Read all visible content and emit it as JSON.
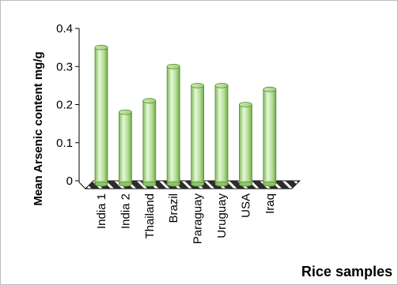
{
  "chart_data": {
    "type": "bar",
    "categories": [
      "India 1",
      "India 2",
      "Thailand",
      "Brazil",
      "Paraguay",
      "Uruguay",
      "USA",
      "Iraq"
    ],
    "values": [
      0.35,
      0.18,
      0.21,
      0.3,
      0.25,
      0.25,
      0.2,
      0.24
    ],
    "ylim": [
      0,
      0.4
    ],
    "yticks": [
      0,
      0.1,
      0.2,
      0.3,
      0.4
    ],
    "ytick_labels": [
      "0",
      "0.1",
      "0.2",
      "0.3",
      "0.4"
    ],
    "xlabel": "Rice samples",
    "ylabel": "Mean Arsenic content mg/g",
    "grid": false,
    "legend": "none",
    "style": "3d-cylinder",
    "bar_color": "#b7e09a",
    "bar_edge_color": "#5a8f2e",
    "floor_color": "#2d2d2d"
  }
}
